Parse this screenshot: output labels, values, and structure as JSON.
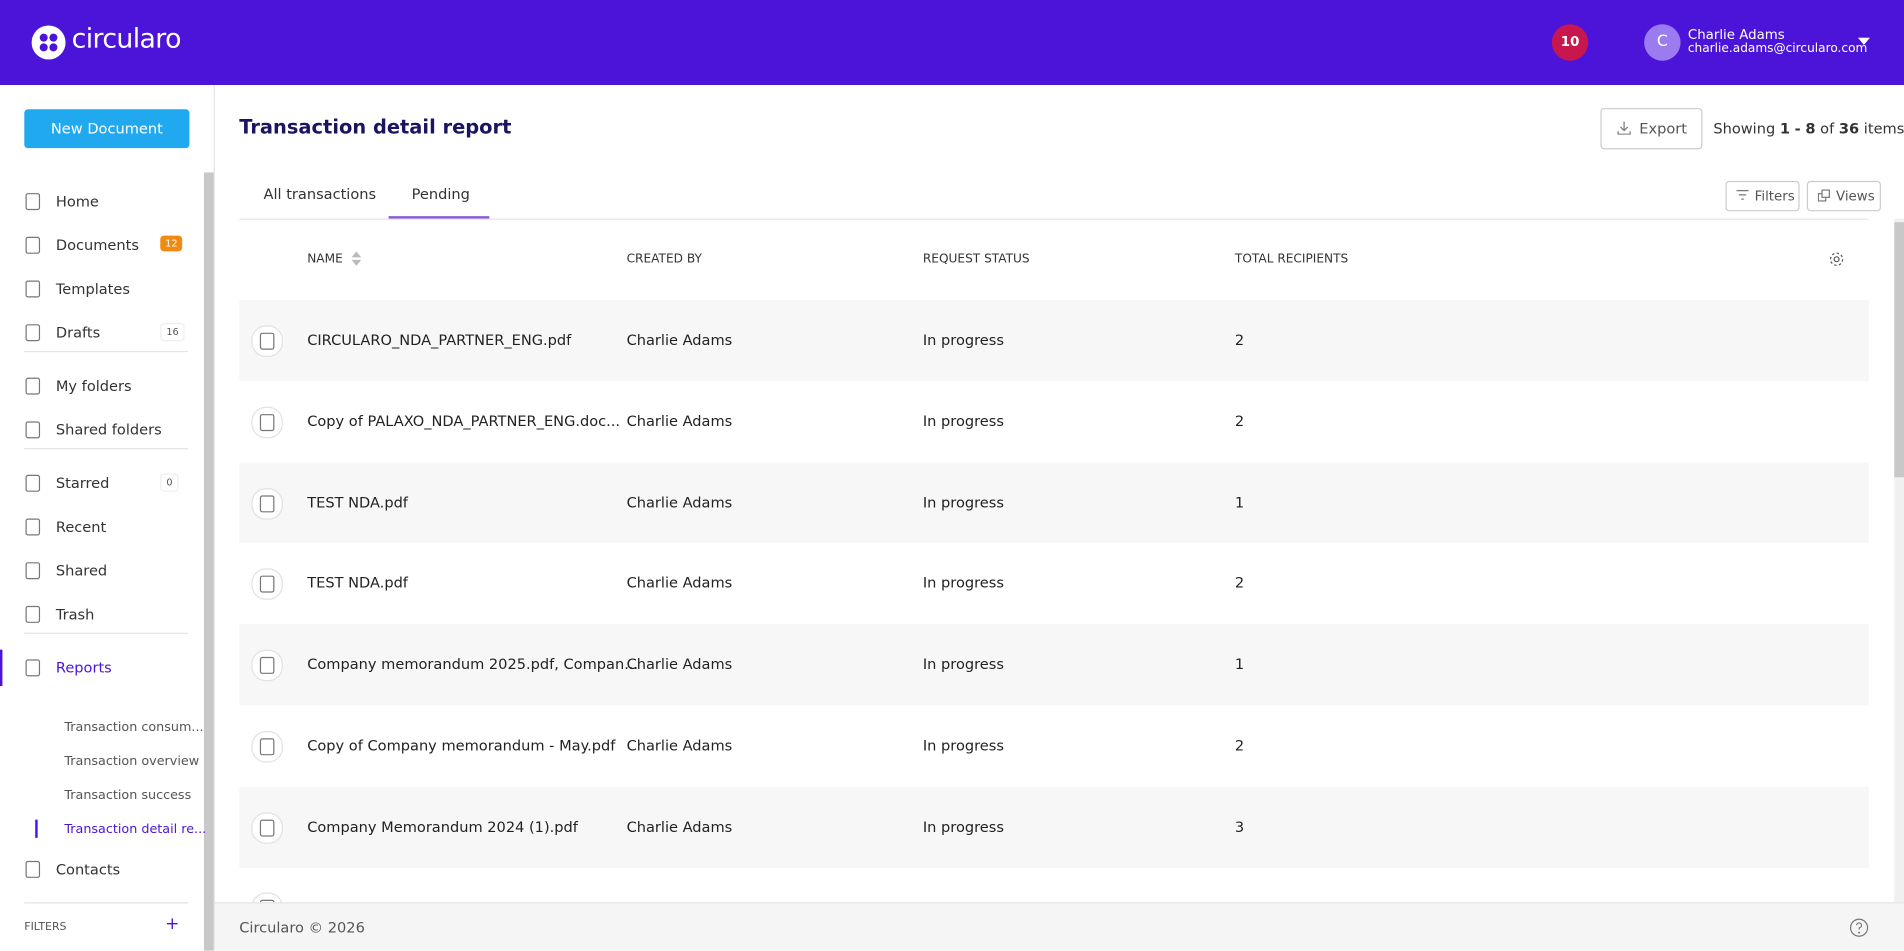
{
  "header": {
    "logo": "circularo",
    "notifications": "10",
    "avatar": "C",
    "user_name": "Charlie Adams",
    "user_email": "charlie.adams@circularo.com"
  },
  "sidebar": {
    "new_document": "New Document",
    "groups": [
      [
        {
          "label": "Home"
        },
        {
          "label": "Documents",
          "badge": "12"
        },
        {
          "label": "Templates"
        },
        {
          "label": "Drafts",
          "badge": "16"
        }
      ],
      [
        {
          "label": "My folders"
        },
        {
          "label": "Shared folders"
        }
      ],
      [
        {
          "label": "Starred",
          "badge": "0"
        },
        {
          "label": "Recent"
        },
        {
          "label": "Shared"
        },
        {
          "label": "Trash"
        }
      ],
      [
        {
          "label": "Reports"
        }
      ]
    ],
    "reports": [
      "Transaction consum...",
      "Transaction overview",
      "Transaction success",
      "Transaction detail re..."
    ],
    "contacts": "Contacts",
    "filters": "FILTERS"
  },
  "main": {
    "title": "Transaction detail report",
    "export": "Export",
    "showing": {
      "prefix": "Showing",
      "start": "1",
      "dash": "-",
      "end": "8",
      "of": "of",
      "total": "36",
      "suffix": "items"
    },
    "tabs": [
      "All transactions",
      "Pending"
    ],
    "filters": "Filters",
    "views": "Views",
    "table": {
      "columns": [
        "NAME",
        "CREATED BY",
        "REQUEST STATUS",
        "TOTAL RECIPIENTS"
      ],
      "rows": [
        [
          "CIRCULARO_NDA_PARTNER_ENG.pdf",
          "Charlie Adams",
          "In progress",
          "2"
        ],
        [
          "Copy of PALAXO_NDA_PARTNER_ENG.doc...",
          "Charlie Adams",
          "In progress",
          "2"
        ],
        [
          "TEST NDA.pdf",
          "Charlie Adams",
          "In progress",
          "1"
        ],
        [
          "TEST NDA.pdf",
          "Charlie Adams",
          "In progress",
          "2"
        ],
        [
          "Company memorandum 2025.pdf, Compan...",
          "Charlie Adams",
          "In progress",
          "1"
        ],
        [
          "Copy of Company memorandum - May.pdf",
          "Charlie Adams",
          "In progress",
          "2"
        ],
        [
          "Company Memorandum 2024 (1).pdf",
          "Charlie Adams",
          "In progress",
          "3"
        ]
      ]
    }
  },
  "footer": {
    "copyright": "Circularo © 2026"
  }
}
